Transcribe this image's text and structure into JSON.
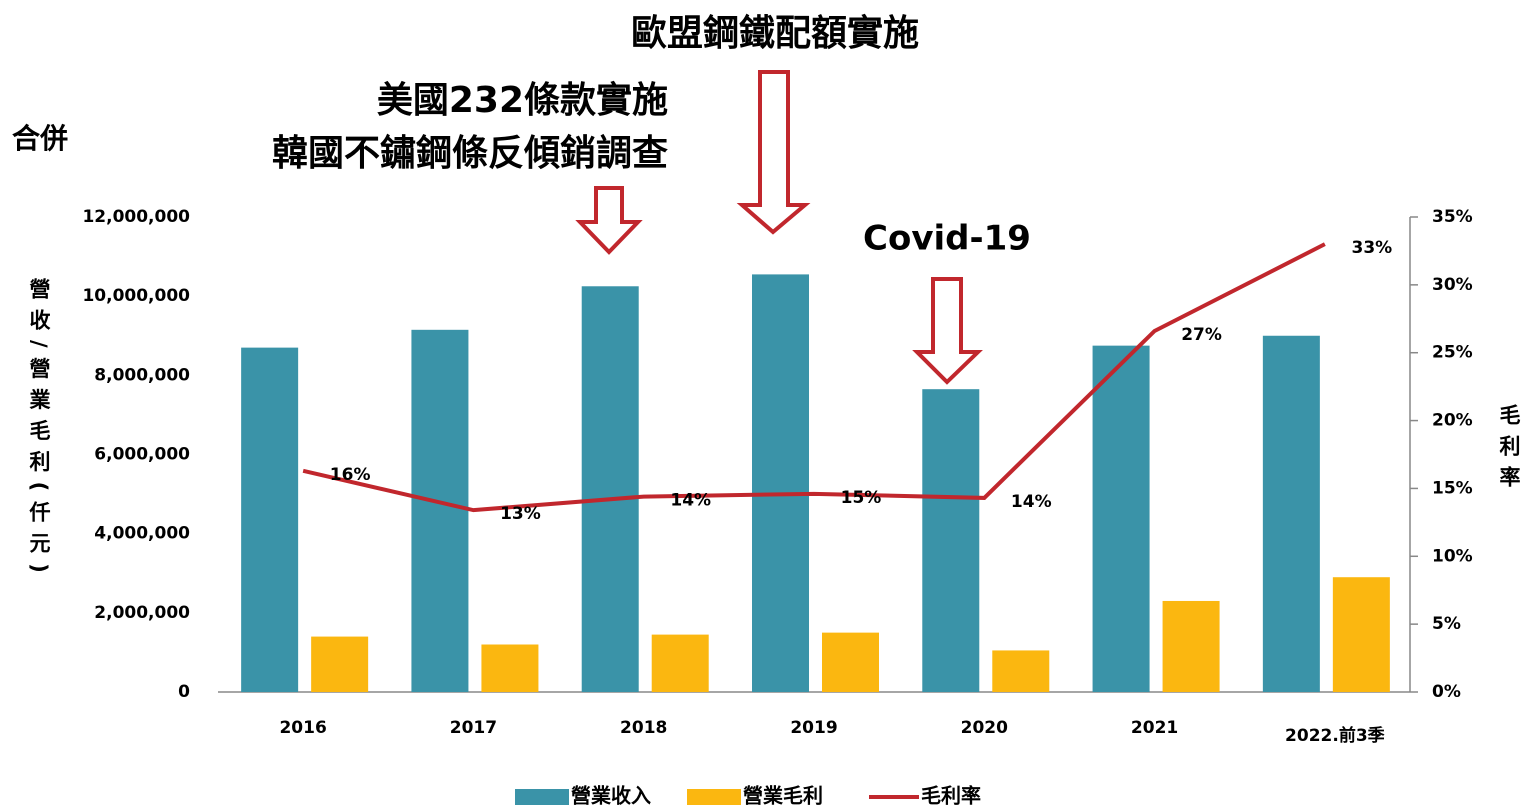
{
  "chart_data": {
    "type": "bar_line",
    "subtitle": "合併",
    "annotations": [
      "歐盟鋼鐵配額實施",
      "美國232條款實施",
      "韓國不鏽鋼條反傾銷調查",
      "Covid-19"
    ],
    "y_label": "營收/營業毛利(仟元)",
    "y2_label": "毛利率",
    "categories": [
      "2016",
      "2017",
      "2018",
      "2019",
      "2020",
      "2021",
      "2022.前3季"
    ],
    "series": [
      {
        "name": "營業收入",
        "color": "#3a93a8",
        "kind": "bar",
        "values": [
          8700000,
          9150000,
          10250000,
          10550000,
          7650000,
          8750000,
          9000000
        ]
      },
      {
        "name": "營業毛利",
        "color": "#fbb710",
        "kind": "bar",
        "values": [
          1400000,
          1200000,
          1450000,
          1500000,
          1050000,
          2300000,
          2900000
        ]
      },
      {
        "name": "毛利率",
        "color": "#c1272d",
        "kind": "line",
        "axis": "y2",
        "values": [
          16.3,
          13.4,
          14.4,
          14.6,
          14.3,
          26.6,
          33
        ],
        "value_labels": [
          "16%",
          "13%",
          "14%",
          "15%",
          "14%",
          "27%",
          "33%"
        ]
      }
    ],
    "ylim": [
      0,
      12000000
    ],
    "yticks": [
      0,
      {
        "value": 2000000,
        "label": "2,000,000"
      },
      {
        "value": 4000000,
        "label": "4,000,000"
      },
      {
        "value": 6000000,
        "label": "6,000,000"
      },
      {
        "value": 8000000,
        "label": "8,000,000"
      },
      {
        "value": 10000000,
        "label": "10,000,000"
      },
      {
        "value": 12000000,
        "label": "12,000,000"
      }
    ],
    "y2lim": [
      0,
      35
    ],
    "y2ticks": [
      {
        "value": 0,
        "label": "0%"
      },
      {
        "value": 5,
        "label": "5%"
      },
      {
        "value": 10,
        "label": "10%"
      },
      {
        "value": 15,
        "label": "15%"
      },
      {
        "value": 20,
        "label": "20%"
      },
      {
        "value": 25,
        "label": "25%"
      },
      {
        "value": 30,
        "label": "30%"
      },
      {
        "value": 35,
        "label": "35%"
      }
    ],
    "legend": "bottom"
  }
}
